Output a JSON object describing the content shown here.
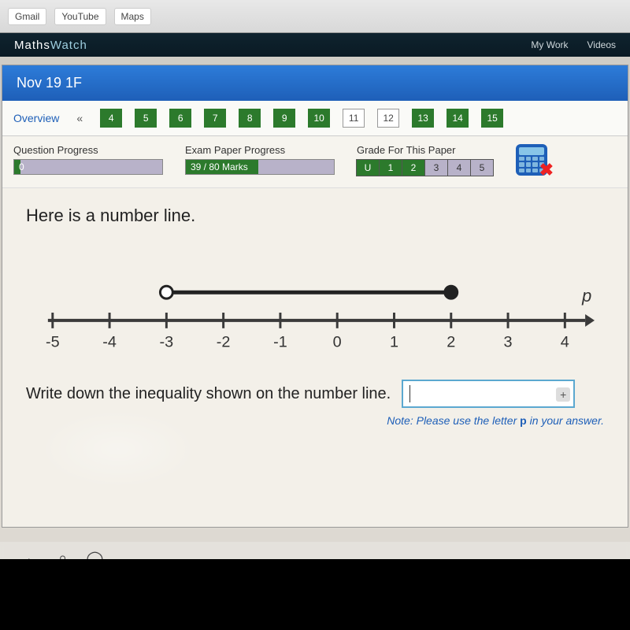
{
  "browser": {
    "bookmarks": [
      "Gmail",
      "YouTube",
      "Maps"
    ],
    "brand_a": "Maths",
    "brand_b": "Watch",
    "right_links": [
      "My Work",
      "Videos"
    ]
  },
  "header": {
    "title": "Nov 19 1F"
  },
  "nav": {
    "overview": "Overview",
    "chev_left": "«",
    "questions": [
      {
        "n": "4",
        "cls": "green"
      },
      {
        "n": "5",
        "cls": "green"
      },
      {
        "n": "6",
        "cls": "green"
      },
      {
        "n": "7",
        "cls": "green"
      },
      {
        "n": "8",
        "cls": "green"
      },
      {
        "n": "9",
        "cls": "green"
      },
      {
        "n": "10",
        "cls": "green"
      },
      {
        "n": "11",
        "cls": "white"
      },
      {
        "n": "12",
        "cls": "white"
      },
      {
        "n": "13",
        "cls": "green"
      },
      {
        "n": "14",
        "cls": "green"
      },
      {
        "n": "15",
        "cls": "green"
      }
    ]
  },
  "progress": {
    "qp_label": "Question Progress",
    "qp_value": "0",
    "qp_fill_pct": 4,
    "ep_label": "Exam Paper Progress",
    "ep_value": "39 / 80 Marks",
    "ep_fill_pct": 49,
    "grade_label": "Grade For This Paper",
    "grades": [
      {
        "t": "U",
        "cls": "g"
      },
      {
        "t": "1",
        "cls": "g"
      },
      {
        "t": "2",
        "cls": "g"
      },
      {
        "t": "3",
        "cls": "x"
      },
      {
        "t": "4",
        "cls": "x"
      },
      {
        "t": "5",
        "cls": "x"
      }
    ]
  },
  "question": {
    "intro": "Here is a number line.",
    "prompt": "Write down the inequality shown on the number line.",
    "note_prefix": "Note: Please use the letter ",
    "note_var": "p",
    "note_suffix": " in your answer.",
    "answer_value": "",
    "plus": "+"
  },
  "numberline": {
    "min": -5,
    "max": 4,
    "tick_step": 1,
    "ticks": [
      "-5",
      "-4",
      "-3",
      "-2",
      "-1",
      "0",
      "1",
      "2",
      "3",
      "4"
    ],
    "axis_label": "p",
    "open_at": -3,
    "closed_at": 2,
    "line_color": "#3a3a3a",
    "line_width": 4,
    "tick_color": "#3a3a3a",
    "tick_width": 3,
    "label_color": "#333",
    "label_fontsize": 20,
    "interval_color": "#222",
    "interval_width": 5,
    "open_fill": "#ffffff",
    "closed_fill": "#222",
    "circle_stroke": "#222",
    "circle_r": 8,
    "axis_label_style": "italic"
  },
  "colors": {
    "blue_bar": "#1e5fb8",
    "green": "#2c7a2c",
    "panel_bg": "#f3f0e9",
    "input_border": "#5ba8d0"
  },
  "taskbar": {
    "icons": [
      "←",
      "⌕",
      "◯"
    ]
  }
}
